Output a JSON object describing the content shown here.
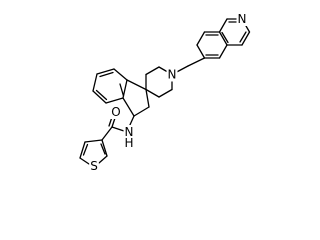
{
  "atoms": [
    {
      "label": "N"
    },
    {
      "label": "N"
    },
    {
      "label": "O"
    },
    {
      "label": "N"
    },
    {
      "label": "H"
    },
    {
      "label": "S"
    }
  ]
}
